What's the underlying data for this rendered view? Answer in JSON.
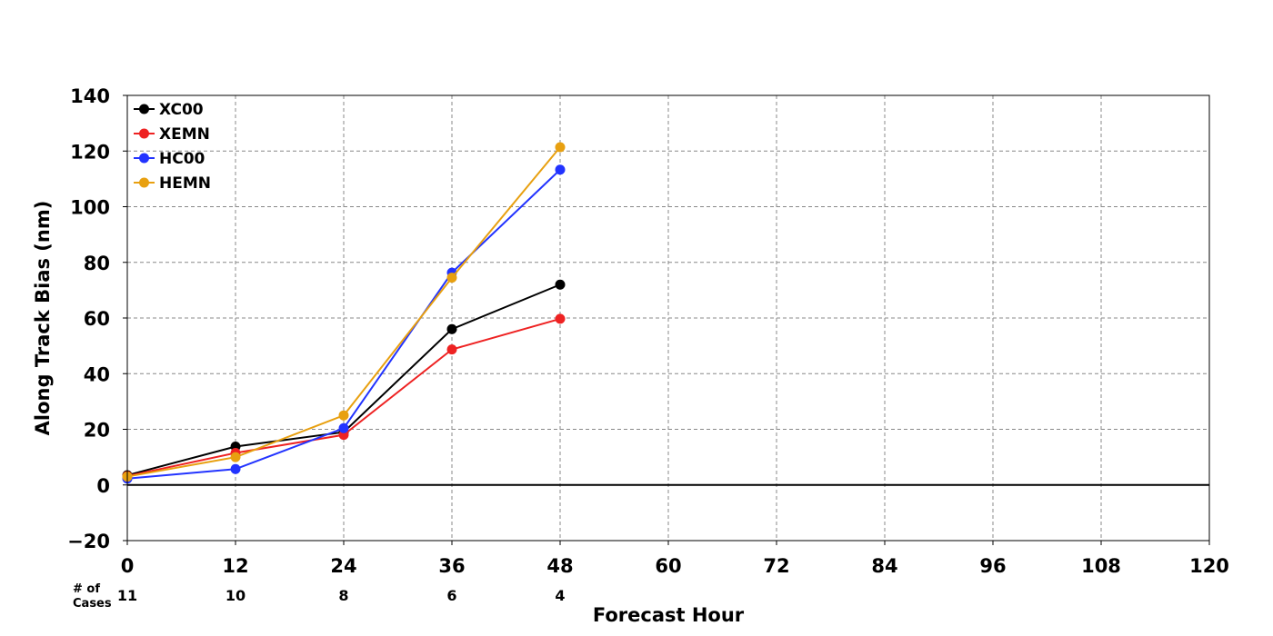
{
  "chart_data": {
    "type": "line",
    "xlabel": "Forecast Hour",
    "ylabel": "Along Track Bias (nm)",
    "xlim": [
      0,
      120
    ],
    "ylim": [
      -20,
      140
    ],
    "xticks": [
      "0",
      "12",
      "24",
      "36",
      "48",
      "60",
      "72",
      "84",
      "96",
      "108",
      "120"
    ],
    "yticks": [
      "−20",
      "0",
      "20",
      "40",
      "60",
      "80",
      "100",
      "120",
      "140"
    ],
    "grid": true,
    "legend_position": "top-left",
    "x": [
      0,
      12,
      24,
      36,
      48
    ],
    "series": [
      {
        "name": "XC00",
        "color": "#000000",
        "values": [
          3.5,
          13.8,
          19.0,
          56.0,
          72.0
        ]
      },
      {
        "name": "XEMN",
        "color": "#ee2222",
        "values": [
          3.2,
          11.5,
          18.0,
          48.7,
          59.7
        ]
      },
      {
        "name": "HC00",
        "color": "#2233ff",
        "values": [
          2.3,
          5.7,
          20.4,
          76.3,
          113.3
        ]
      },
      {
        "name": "HEMN",
        "color": "#e8a010",
        "values": [
          3.0,
          10.0,
          25.0,
          74.5,
          121.4
        ]
      }
    ],
    "cases_label": [
      "# of",
      "Cases"
    ],
    "cases": [
      {
        "x": 0,
        "count": "11"
      },
      {
        "x": 12,
        "count": "10"
      },
      {
        "x": 24,
        "count": "8"
      },
      {
        "x": 36,
        "count": "6"
      },
      {
        "x": 48,
        "count": "4"
      }
    ]
  }
}
